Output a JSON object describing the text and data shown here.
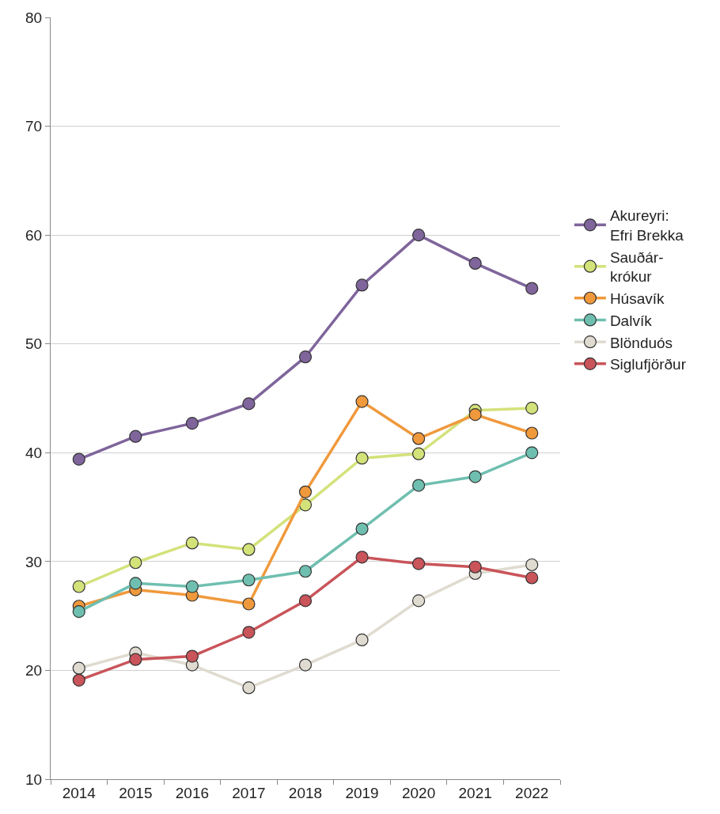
{
  "chart_data": {
    "type": "line",
    "categories": [
      "2014",
      "2015",
      "2016",
      "2017",
      "2018",
      "2019",
      "2020",
      "2021",
      "2022"
    ],
    "ylim": [
      10,
      80
    ],
    "yticks": [
      10,
      20,
      30,
      40,
      50,
      60,
      70,
      80
    ],
    "grid": "y",
    "legend": "right",
    "marker": "circle",
    "line_style": "solid",
    "series": [
      {
        "name": "Akureyri:\nEfri Brekka",
        "color": "#7f659b",
        "values": [
          39.4,
          41.5,
          42.7,
          44.5,
          48.8,
          55.4,
          60,
          57.4,
          55.1
        ]
      },
      {
        "name": "Sauðár-\nkrókur",
        "color": "#d4e27a",
        "values": [
          27.7,
          29.9,
          31.7,
          31.1,
          35.2,
          39.5,
          39.9,
          43.9,
          44.1
        ]
      },
      {
        "name": "Húsavík",
        "color": "#f0993c",
        "values": [
          25.9,
          27.4,
          26.9,
          26.1,
          36.4,
          44.7,
          41.3,
          43.5,
          41.8
        ]
      },
      {
        "name": "Dalvík",
        "color": "#6fbfb0",
        "values": [
          25.4,
          28.0,
          27.7,
          28.3,
          29.1,
          33.0,
          37.0,
          37.8,
          40.0
        ]
      },
      {
        "name": "Blönduós",
        "color": "#e0dbd0",
        "values": [
          20.2,
          21.6,
          20.5,
          18.4,
          20.5,
          22.8,
          26.4,
          28.9,
          29.7
        ]
      },
      {
        "name": "Siglufjörður",
        "color": "#c9545a",
        "values": [
          19.1,
          21.0,
          21.3,
          23.5,
          26.4,
          30.4,
          29.8,
          29.5,
          28.5
        ]
      }
    ]
  }
}
